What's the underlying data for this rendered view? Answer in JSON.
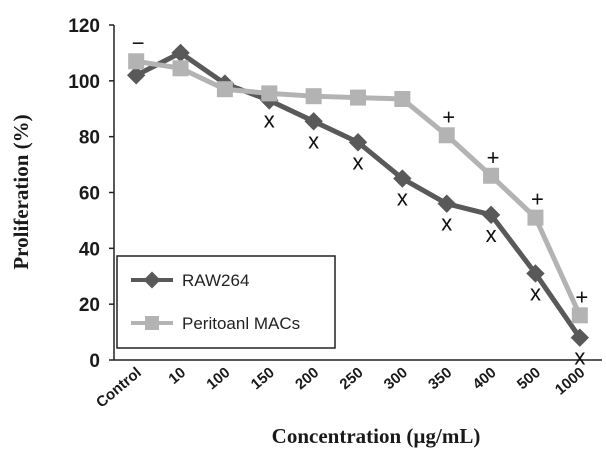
{
  "chart_data": {
    "type": "line",
    "categories": [
      "Control",
      "10",
      "100",
      "150",
      "200",
      "250",
      "300",
      "350",
      "400",
      "500",
      "1000"
    ],
    "xlabel": "Concentration (µg/mL)",
    "ylabel": "Proliferation (%)",
    "ylim": [
      0,
      120
    ],
    "yticks": [
      0,
      20,
      40,
      60,
      80,
      100,
      120
    ],
    "grid": false,
    "legend_position": "bottom-left",
    "series": [
      {
        "name": "RAW264",
        "color": "#595959",
        "marker": "diamond",
        "values": [
          102,
          110,
          99,
          93,
          85.5,
          78,
          65,
          56,
          52,
          31,
          8
        ],
        "annotations": [
          "",
          "",
          "",
          "x",
          "x",
          "x",
          "x",
          "x",
          "x",
          "x",
          "x"
        ]
      },
      {
        "name": "Peritoanl MACs",
        "color": "#b3b3b3",
        "marker": "square",
        "values": [
          107,
          104.5,
          97,
          95.5,
          94.5,
          94,
          93.5,
          80.5,
          66,
          51,
          16
        ],
        "annotations": [
          "−",
          "",
          "",
          "",
          "",
          "",
          "",
          "+",
          "+",
          "+",
          "+"
        ]
      }
    ]
  }
}
